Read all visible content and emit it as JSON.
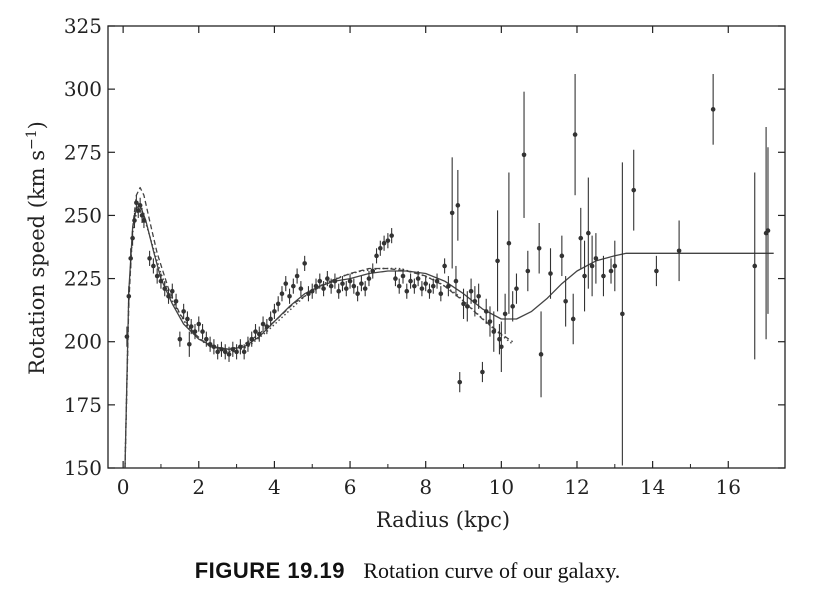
{
  "caption": {
    "figure_label": "FIGURE 19.19",
    "text": "Rotation curve of our galaxy."
  },
  "chart_data": {
    "type": "scatter",
    "title": "",
    "xlabel": "Radius (kpc)",
    "ylabel_main": "Rotation speed (km s",
    "ylabel_sup": "−1",
    "ylabel_close": ")",
    "xlim": [
      -0.4,
      17.5
    ],
    "ylim": [
      150,
      325
    ],
    "xticks": [
      0,
      2,
      4,
      6,
      8,
      10,
      12,
      14,
      16
    ],
    "yticks": [
      150,
      175,
      200,
      225,
      250,
      275,
      300,
      325
    ],
    "grid": false,
    "colors": {
      "points": "#333333",
      "curves": "#444444",
      "axes": "#222222"
    },
    "series": [
      {
        "kind": "points",
        "points": [
          {
            "x": 0.1,
            "y": 202,
            "e": 4
          },
          {
            "x": 0.15,
            "y": 218,
            "e": 4
          },
          {
            "x": 0.2,
            "y": 233,
            "e": 4
          },
          {
            "x": 0.25,
            "y": 241,
            "e": 3
          },
          {
            "x": 0.3,
            "y": 248,
            "e": 3
          },
          {
            "x": 0.35,
            "y": 255,
            "e": 3
          },
          {
            "x": 0.4,
            "y": 252,
            "e": 3
          },
          {
            "x": 0.45,
            "y": 254,
            "e": 3
          },
          {
            "x": 0.5,
            "y": 250,
            "e": 3
          },
          {
            "x": 0.55,
            "y": 248,
            "e": 3
          },
          {
            "x": 0.7,
            "y": 233,
            "e": 3
          },
          {
            "x": 0.8,
            "y": 230,
            "e": 3
          },
          {
            "x": 0.9,
            "y": 226,
            "e": 3
          },
          {
            "x": 1.0,
            "y": 224,
            "e": 3
          },
          {
            "x": 1.1,
            "y": 221,
            "e": 3
          },
          {
            "x": 1.2,
            "y": 218,
            "e": 3
          },
          {
            "x": 1.3,
            "y": 220,
            "e": 3
          },
          {
            "x": 1.4,
            "y": 216,
            "e": 3
          },
          {
            "x": 1.5,
            "y": 201,
            "e": 3
          },
          {
            "x": 1.6,
            "y": 212,
            "e": 3
          },
          {
            "x": 1.7,
            "y": 209,
            "e": 3
          },
          {
            "x": 1.75,
            "y": 199,
            "e": 5
          },
          {
            "x": 1.8,
            "y": 206,
            "e": 3
          },
          {
            "x": 1.9,
            "y": 204,
            "e": 3
          },
          {
            "x": 2.0,
            "y": 207,
            "e": 3
          },
          {
            "x": 2.1,
            "y": 204,
            "e": 3
          },
          {
            "x": 2.2,
            "y": 201,
            "e": 3
          },
          {
            "x": 2.3,
            "y": 199,
            "e": 3
          },
          {
            "x": 2.4,
            "y": 198,
            "e": 3
          },
          {
            "x": 2.5,
            "y": 196,
            "e": 3
          },
          {
            "x": 2.6,
            "y": 197,
            "e": 3
          },
          {
            "x": 2.7,
            "y": 196,
            "e": 3
          },
          {
            "x": 2.8,
            "y": 195,
            "e": 3
          },
          {
            "x": 2.9,
            "y": 197,
            "e": 3
          },
          {
            "x": 3.0,
            "y": 196,
            "e": 3
          },
          {
            "x": 3.1,
            "y": 198,
            "e": 3
          },
          {
            "x": 3.2,
            "y": 196,
            "e": 3
          },
          {
            "x": 3.3,
            "y": 199,
            "e": 3
          },
          {
            "x": 3.4,
            "y": 201,
            "e": 3
          },
          {
            "x": 3.5,
            "y": 204,
            "e": 3
          },
          {
            "x": 3.6,
            "y": 203,
            "e": 3
          },
          {
            "x": 3.7,
            "y": 207,
            "e": 3
          },
          {
            "x": 3.8,
            "y": 206,
            "e": 3
          },
          {
            "x": 3.9,
            "y": 209,
            "e": 3
          },
          {
            "x": 4.0,
            "y": 212,
            "e": 3
          },
          {
            "x": 4.1,
            "y": 215,
            "e": 3
          },
          {
            "x": 4.2,
            "y": 219,
            "e": 3
          },
          {
            "x": 4.3,
            "y": 223,
            "e": 3
          },
          {
            "x": 4.4,
            "y": 218,
            "e": 3
          },
          {
            "x": 4.5,
            "y": 222,
            "e": 3
          },
          {
            "x": 4.6,
            "y": 226,
            "e": 3
          },
          {
            "x": 4.7,
            "y": 221,
            "e": 3
          },
          {
            "x": 4.8,
            "y": 231,
            "e": 3
          },
          {
            "x": 4.9,
            "y": 219,
            "e": 3
          },
          {
            "x": 5.0,
            "y": 220,
            "e": 3
          },
          {
            "x": 5.1,
            "y": 222,
            "e": 3
          },
          {
            "x": 5.2,
            "y": 224,
            "e": 3
          },
          {
            "x": 5.3,
            "y": 221,
            "e": 3
          },
          {
            "x": 5.4,
            "y": 225,
            "e": 3
          },
          {
            "x": 5.5,
            "y": 222,
            "e": 3
          },
          {
            "x": 5.6,
            "y": 224,
            "e": 3
          },
          {
            "x": 5.7,
            "y": 220,
            "e": 3
          },
          {
            "x": 5.8,
            "y": 223,
            "e": 3
          },
          {
            "x": 5.9,
            "y": 221,
            "e": 3
          },
          {
            "x": 6.0,
            "y": 224,
            "e": 3
          },
          {
            "x": 6.1,
            "y": 222,
            "e": 3
          },
          {
            "x": 6.2,
            "y": 219,
            "e": 3
          },
          {
            "x": 6.3,
            "y": 223,
            "e": 3
          },
          {
            "x": 6.4,
            "y": 221,
            "e": 3
          },
          {
            "x": 6.5,
            "y": 225,
            "e": 3
          },
          {
            "x": 6.6,
            "y": 228,
            "e": 3
          },
          {
            "x": 6.7,
            "y": 234,
            "e": 3
          },
          {
            "x": 6.8,
            "y": 237,
            "e": 3
          },
          {
            "x": 6.9,
            "y": 239,
            "e": 3
          },
          {
            "x": 7.0,
            "y": 240,
            "e": 3
          },
          {
            "x": 7.1,
            "y": 242,
            "e": 3
          },
          {
            "x": 7.2,
            "y": 225,
            "e": 3
          },
          {
            "x": 7.3,
            "y": 222,
            "e": 3
          },
          {
            "x": 7.4,
            "y": 226,
            "e": 3
          },
          {
            "x": 7.5,
            "y": 220,
            "e": 3
          },
          {
            "x": 7.6,
            "y": 224,
            "e": 3
          },
          {
            "x": 7.7,
            "y": 222,
            "e": 3
          },
          {
            "x": 7.8,
            "y": 225,
            "e": 3
          },
          {
            "x": 7.9,
            "y": 221,
            "e": 3
          },
          {
            "x": 8.0,
            "y": 223,
            "e": 3
          },
          {
            "x": 8.1,
            "y": 220,
            "e": 3
          },
          {
            "x": 8.2,
            "y": 222,
            "e": 3
          },
          {
            "x": 8.3,
            "y": 224,
            "e": 3
          },
          {
            "x": 8.4,
            "y": 219,
            "e": 3
          },
          {
            "x": 8.5,
            "y": 230,
            "e": 3
          },
          {
            "x": 8.6,
            "y": 222,
            "e": 4
          },
          {
            "x": 8.7,
            "y": 251,
            "e": 22
          },
          {
            "x": 8.8,
            "y": 224,
            "e": 6
          },
          {
            "x": 8.85,
            "y": 254,
            "e": 14
          },
          {
            "x": 8.9,
            "y": 184,
            "e": 4
          },
          {
            "x": 9.0,
            "y": 215,
            "e": 6
          },
          {
            "x": 9.1,
            "y": 214,
            "e": 6
          },
          {
            "x": 9.2,
            "y": 220,
            "e": 5
          },
          {
            "x": 9.3,
            "y": 216,
            "e": 6
          },
          {
            "x": 9.4,
            "y": 218,
            "e": 5
          },
          {
            "x": 9.5,
            "y": 188,
            "e": 4
          },
          {
            "x": 9.6,
            "y": 212,
            "e": 5
          },
          {
            "x": 9.7,
            "y": 208,
            "e": 6
          },
          {
            "x": 9.8,
            "y": 204,
            "e": 8
          },
          {
            "x": 9.9,
            "y": 232,
            "e": 20
          },
          {
            "x": 9.95,
            "y": 201,
            "e": 6
          },
          {
            "x": 10.0,
            "y": 198,
            "e": 10
          },
          {
            "x": 10.1,
            "y": 211,
            "e": 8
          },
          {
            "x": 10.2,
            "y": 239,
            "e": 28
          },
          {
            "x": 10.3,
            "y": 214,
            "e": 6
          },
          {
            "x": 10.4,
            "y": 221,
            "e": 6
          },
          {
            "x": 10.6,
            "y": 274,
            "e": 25
          },
          {
            "x": 10.7,
            "y": 228,
            "e": 8
          },
          {
            "x": 11.0,
            "y": 237,
            "e": 10
          },
          {
            "x": 11.05,
            "y": 195,
            "e": 17
          },
          {
            "x": 11.3,
            "y": 227,
            "e": 10
          },
          {
            "x": 11.6,
            "y": 234,
            "e": 8
          },
          {
            "x": 11.7,
            "y": 216,
            "e": 10
          },
          {
            "x": 11.9,
            "y": 209,
            "e": 10
          },
          {
            "x": 11.95,
            "y": 282,
            "e": 24
          },
          {
            "x": 12.1,
            "y": 241,
            "e": 12
          },
          {
            "x": 12.2,
            "y": 226,
            "e": 14
          },
          {
            "x": 12.3,
            "y": 243,
            "e": 22
          },
          {
            "x": 12.4,
            "y": 230,
            "e": 12
          },
          {
            "x": 12.5,
            "y": 233,
            "e": 10
          },
          {
            "x": 12.7,
            "y": 226,
            "e": 8
          },
          {
            "x": 12.9,
            "y": 228,
            "e": 5
          },
          {
            "x": 13.0,
            "y": 230,
            "e": 10
          },
          {
            "x": 13.2,
            "y": 211,
            "e": 60
          },
          {
            "x": 13.5,
            "y": 260,
            "e": 16
          },
          {
            "x": 14.1,
            "y": 228,
            "e": 6
          },
          {
            "x": 14.7,
            "y": 236,
            "e": 12
          },
          {
            "x": 15.6,
            "y": 292,
            "e": 14
          },
          {
            "x": 16.7,
            "y": 230,
            "e": 37
          },
          {
            "x": 17.0,
            "y": 243,
            "e": 42
          },
          {
            "x": 17.05,
            "y": 244,
            "e": 33
          }
        ]
      },
      {
        "kind": "solid-curve",
        "points": [
          {
            "x": 0.05,
            "y": 150
          },
          {
            "x": 0.15,
            "y": 220
          },
          {
            "x": 0.25,
            "y": 245
          },
          {
            "x": 0.35,
            "y": 253
          },
          {
            "x": 0.45,
            "y": 254
          },
          {
            "x": 0.6,
            "y": 248
          },
          {
            "x": 0.8,
            "y": 236
          },
          {
            "x": 1.0,
            "y": 225
          },
          {
            "x": 1.3,
            "y": 215
          },
          {
            "x": 1.6,
            "y": 207
          },
          {
            "x": 2.0,
            "y": 201
          },
          {
            "x": 2.4,
            "y": 198
          },
          {
            "x": 2.8,
            "y": 197
          },
          {
            "x": 3.2,
            "y": 198
          },
          {
            "x": 3.6,
            "y": 202
          },
          {
            "x": 4.0,
            "y": 208
          },
          {
            "x": 4.4,
            "y": 214
          },
          {
            "x": 4.8,
            "y": 219
          },
          {
            "x": 5.2,
            "y": 222
          },
          {
            "x": 5.6,
            "y": 224
          },
          {
            "x": 6.0,
            "y": 225
          },
          {
            "x": 6.5,
            "y": 227
          },
          {
            "x": 7.0,
            "y": 228
          },
          {
            "x": 7.5,
            "y": 228
          },
          {
            "x": 8.0,
            "y": 227
          },
          {
            "x": 8.5,
            "y": 224
          },
          {
            "x": 9.0,
            "y": 219
          },
          {
            "x": 9.5,
            "y": 213
          },
          {
            "x": 10.0,
            "y": 209
          },
          {
            "x": 10.4,
            "y": 209
          },
          {
            "x": 10.8,
            "y": 212
          },
          {
            "x": 11.2,
            "y": 217
          },
          {
            "x": 11.6,
            "y": 223
          },
          {
            "x": 12.0,
            "y": 228
          },
          {
            "x": 12.5,
            "y": 232
          },
          {
            "x": 13.0,
            "y": 234
          },
          {
            "x": 13.3,
            "y": 235
          },
          {
            "x": 14,
            "y": 235
          },
          {
            "x": 15,
            "y": 235
          },
          {
            "x": 16,
            "y": 235
          },
          {
            "x": 17.2,
            "y": 235
          }
        ]
      },
      {
        "kind": "dashed-curve",
        "points": [
          {
            "x": 0.05,
            "y": 150
          },
          {
            "x": 0.15,
            "y": 215
          },
          {
            "x": 0.25,
            "y": 245
          },
          {
            "x": 0.35,
            "y": 258
          },
          {
            "x": 0.45,
            "y": 261
          },
          {
            "x": 0.55,
            "y": 258
          },
          {
            "x": 0.7,
            "y": 248
          },
          {
            "x": 0.9,
            "y": 235
          },
          {
            "x": 1.2,
            "y": 221
          },
          {
            "x": 1.5,
            "y": 211
          },
          {
            "x": 1.9,
            "y": 203
          },
          {
            "x": 2.3,
            "y": 198
          },
          {
            "x": 2.7,
            "y": 197
          },
          {
            "x": 3.1,
            "y": 198
          },
          {
            "x": 3.5,
            "y": 202
          },
          {
            "x": 4.0,
            "y": 208
          },
          {
            "x": 4.5,
            "y": 215
          },
          {
            "x": 5.0,
            "y": 220
          },
          {
            "x": 5.5,
            "y": 224
          },
          {
            "x": 6.0,
            "y": 227
          },
          {
            "x": 6.5,
            "y": 229
          },
          {
            "x": 7.0,
            "y": 229
          },
          {
            "x": 7.5,
            "y": 228
          },
          {
            "x": 8.0,
            "y": 226
          },
          {
            "x": 8.5,
            "y": 222
          },
          {
            "x": 9.0,
            "y": 216
          },
          {
            "x": 9.5,
            "y": 209
          },
          {
            "x": 10.0,
            "y": 203
          },
          {
            "x": 10.3,
            "y": 200
          }
        ]
      },
      {
        "kind": "dotted-curve",
        "points": [
          {
            "x": 0.05,
            "y": 150
          },
          {
            "x": 0.15,
            "y": 218
          },
          {
            "x": 0.25,
            "y": 243
          },
          {
            "x": 0.35,
            "y": 251
          },
          {
            "x": 0.45,
            "y": 252
          },
          {
            "x": 0.6,
            "y": 247
          },
          {
            "x": 0.8,
            "y": 237
          },
          {
            "x": 1.0,
            "y": 227
          },
          {
            "x": 1.3,
            "y": 216
          },
          {
            "x": 1.7,
            "y": 206
          },
          {
            "x": 2.1,
            "y": 200
          },
          {
            "x": 2.5,
            "y": 197
          },
          {
            "x": 2.9,
            "y": 196
          },
          {
            "x": 3.3,
            "y": 198
          },
          {
            "x": 3.8,
            "y": 204
          },
          {
            "x": 4.3,
            "y": 211
          },
          {
            "x": 4.8,
            "y": 218
          },
          {
            "x": 5.3,
            "y": 223
          },
          {
            "x": 5.8,
            "y": 226
          },
          {
            "x": 6.3,
            "y": 228
          },
          {
            "x": 6.8,
            "y": 229
          },
          {
            "x": 7.3,
            "y": 229
          },
          {
            "x": 7.8,
            "y": 227
          },
          {
            "x": 8.3,
            "y": 224
          },
          {
            "x": 8.8,
            "y": 219
          },
          {
            "x": 9.3,
            "y": 212
          },
          {
            "x": 9.8,
            "y": 205
          },
          {
            "x": 10.3,
            "y": 199
          }
        ]
      }
    ]
  }
}
